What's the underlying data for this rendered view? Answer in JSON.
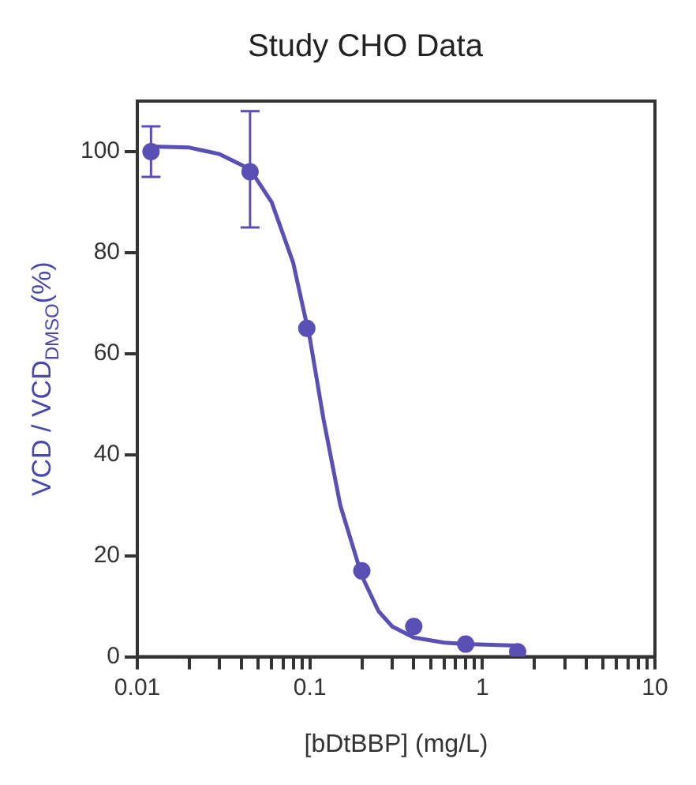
{
  "chart_data": {
    "type": "scatter",
    "title": "Study CHO Data",
    "xlabel": "[bDtBBP] (mg/L)",
    "ylabel": "VCD / VCD$_{DMSO}$(%)",
    "log": "x",
    "grid": false,
    "legend": false,
    "marker": "circle",
    "line_style": "solid",
    "xlim": [
      0.01,
      10
    ],
    "ylim": [
      0,
      110
    ],
    "xticks": [
      {
        "value": 0.01,
        "label": "0.01"
      },
      {
        "value": 0.02,
        "label": null
      },
      {
        "value": 0.03,
        "label": null
      },
      {
        "value": 0.04,
        "label": null
      },
      {
        "value": 0.05,
        "label": null
      },
      {
        "value": 0.06,
        "label": null
      },
      {
        "value": 0.07,
        "label": null
      },
      {
        "value": 0.08,
        "label": null
      },
      {
        "value": 0.09,
        "label": null
      },
      {
        "value": 0.1,
        "label": "0.1"
      },
      {
        "value": 0.2,
        "label": null
      },
      {
        "value": 0.3,
        "label": null
      },
      {
        "value": 0.4,
        "label": null
      },
      {
        "value": 0.5,
        "label": null
      },
      {
        "value": 0.6,
        "label": null
      },
      {
        "value": 0.7,
        "label": null
      },
      {
        "value": 0.8,
        "label": null
      },
      {
        "value": 0.9,
        "label": null
      },
      1,
      {
        "value": 2,
        "label": null
      },
      {
        "value": 3,
        "label": null
      },
      {
        "value": 4,
        "label": null
      },
      {
        "value": 5,
        "label": null
      },
      {
        "value": 6,
        "label": null
      },
      {
        "value": 7,
        "label": null
      },
      {
        "value": 8,
        "label": null
      },
      {
        "value": 9,
        "label": null
      },
      {
        "value": 10,
        "label": "10"
      }
    ],
    "yticks": [
      0,
      20,
      40,
      60,
      80,
      100
    ],
    "series": [
      {
        "color": "#5a4fb5",
        "x": [
          0.012,
          0.045,
          0.096,
          0.2,
          0.4,
          0.8,
          1.6
        ],
        "values": [
          100,
          96,
          65,
          17,
          6,
          2.5,
          1
        ],
        "errors": [
          [
            95,
            105
          ],
          [
            85,
            108
          ],
          null,
          null,
          null,
          null,
          null
        ]
      },
      {
        "type": "line",
        "marker": "none",
        "color": "#5a4fb5",
        "x": [
          0.012,
          0.02,
          0.03,
          0.045,
          0.06,
          0.08,
          0.1,
          0.12,
          0.15,
          0.2,
          0.25,
          0.3,
          0.4,
          0.6,
          0.8,
          1.6
        ],
        "values": [
          101,
          100.8,
          99.5,
          96.5,
          90,
          78,
          63,
          47,
          30,
          16,
          9,
          6,
          3.8,
          2.8,
          2.5,
          2.2
        ]
      }
    ]
  }
}
